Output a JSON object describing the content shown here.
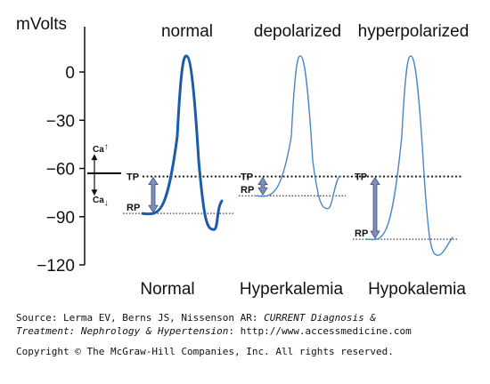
{
  "axis": {
    "unit": "mVolts",
    "ticks": [
      {
        "value": 0,
        "label": "0"
      },
      {
        "value": -30,
        "label": "−30"
      },
      {
        "value": -60,
        "label": "−60"
      },
      {
        "value": -90,
        "label": "−90"
      },
      {
        "value": -120,
        "label": "−120"
      }
    ]
  },
  "panels": [
    {
      "heading": "normal",
      "condition": "Normal",
      "tp": -65,
      "rp": -88,
      "peak": 10,
      "trough": -98,
      "style": "bold"
    },
    {
      "heading": "depolarized",
      "condition": "Hyperkalemia",
      "tp": -65,
      "rp": -77,
      "peak": 10,
      "trough": -85,
      "style": "light"
    },
    {
      "heading": "hyperpolarized",
      "condition": "Hypokalemia",
      "tp": -65,
      "rp": -104,
      "peak": 10,
      "trough": -114,
      "style": "light"
    }
  ],
  "labels": {
    "tp": "TP",
    "rp": "RP",
    "ca": "Ca",
    "ca_up": "↑",
    "ca_down": "↓",
    "ca_up_arrow": "▲",
    "ca_down_arrow": "▼"
  },
  "colors": {
    "bold_trace": "#1a5ca8",
    "light_trace": "#4a86c8",
    "arrow_fill": "#7f8fb8",
    "arrow_edge": "#3d4f80"
  },
  "credits": {
    "source_prefix": "Source: Lerma EV, Berns JS, Nissenson AR: ",
    "source_title_1": "CURRENT Diagnosis &",
    "source_title_2": "Treatment: Nephrology & Hypertension",
    "source_suffix": ": http://www.accessmedicine.com",
    "copyright": "Copyright © The McGraw-Hill Companies, Inc. All rights reserved."
  }
}
